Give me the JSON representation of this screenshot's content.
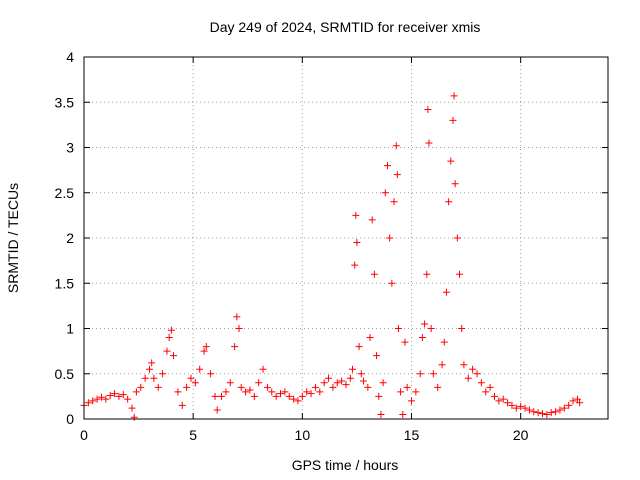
{
  "chart_data": {
    "type": "scatter",
    "title": "Day 249 of 2024, SRMTID for receiver xmis",
    "xlabel": "GPS time / hours",
    "ylabel": "SRMTID / TECUs",
    "xlim": [
      0,
      24
    ],
    "ylim": [
      0,
      4
    ],
    "xticks": [
      0,
      5,
      10,
      15,
      20
    ],
    "yticks": [
      0,
      0.5,
      1,
      1.5,
      2,
      2.5,
      3,
      3.5,
      4
    ],
    "ytick_labels": [
      "0",
      "0.5",
      "1",
      "1.5",
      "2",
      "2.5",
      "3",
      "3.5",
      "4"
    ],
    "grid": true,
    "marker": "+",
    "color": "#ff0000",
    "series": [
      {
        "name": "xmis",
        "points": [
          [
            0.0,
            0.15
          ],
          [
            0.2,
            0.18
          ],
          [
            0.4,
            0.2
          ],
          [
            0.6,
            0.22
          ],
          [
            0.8,
            0.24
          ],
          [
            1.0,
            0.22
          ],
          [
            1.2,
            0.26
          ],
          [
            1.4,
            0.28
          ],
          [
            1.6,
            0.25
          ],
          [
            1.8,
            0.27
          ],
          [
            2.0,
            0.22
          ],
          [
            2.2,
            0.12
          ],
          [
            2.3,
            0.02
          ],
          [
            2.4,
            0.3
          ],
          [
            2.6,
            0.35
          ],
          [
            2.8,
            0.45
          ],
          [
            3.0,
            0.55
          ],
          [
            3.1,
            0.62
          ],
          [
            3.2,
            0.45
          ],
          [
            3.4,
            0.35
          ],
          [
            3.6,
            0.5
          ],
          [
            3.8,
            0.75
          ],
          [
            3.9,
            0.9
          ],
          [
            4.0,
            0.98
          ],
          [
            4.1,
            0.7
          ],
          [
            4.3,
            0.3
          ],
          [
            4.5,
            0.15
          ],
          [
            4.7,
            0.35
          ],
          [
            4.9,
            0.45
          ],
          [
            5.1,
            0.4
          ],
          [
            5.3,
            0.55
          ],
          [
            5.5,
            0.75
          ],
          [
            5.6,
            0.8
          ],
          [
            5.8,
            0.5
          ],
          [
            6.0,
            0.25
          ],
          [
            6.1,
            0.1
          ],
          [
            6.3,
            0.25
          ],
          [
            6.5,
            0.3
          ],
          [
            6.7,
            0.4
          ],
          [
            6.9,
            0.8
          ],
          [
            7.0,
            1.13
          ],
          [
            7.1,
            1.0
          ],
          [
            7.2,
            0.35
          ],
          [
            7.4,
            0.3
          ],
          [
            7.6,
            0.32
          ],
          [
            7.8,
            0.25
          ],
          [
            8.0,
            0.4
          ],
          [
            8.2,
            0.55
          ],
          [
            8.4,
            0.35
          ],
          [
            8.6,
            0.3
          ],
          [
            8.8,
            0.25
          ],
          [
            9.0,
            0.28
          ],
          [
            9.2,
            0.3
          ],
          [
            9.4,
            0.25
          ],
          [
            9.6,
            0.22
          ],
          [
            9.8,
            0.2
          ],
          [
            10.0,
            0.25
          ],
          [
            10.2,
            0.3
          ],
          [
            10.4,
            0.28
          ],
          [
            10.6,
            0.35
          ],
          [
            10.8,
            0.3
          ],
          [
            11.0,
            0.4
          ],
          [
            11.2,
            0.45
          ],
          [
            11.4,
            0.35
          ],
          [
            11.6,
            0.4
          ],
          [
            11.8,
            0.42
          ],
          [
            12.0,
            0.38
          ],
          [
            12.2,
            0.45
          ],
          [
            12.3,
            0.55
          ],
          [
            12.4,
            1.7
          ],
          [
            12.45,
            2.25
          ],
          [
            12.5,
            1.95
          ],
          [
            12.6,
            0.8
          ],
          [
            12.7,
            0.5
          ],
          [
            12.8,
            0.42
          ],
          [
            13.0,
            0.35
          ],
          [
            13.1,
            0.9
          ],
          [
            13.2,
            2.2
          ],
          [
            13.3,
            1.6
          ],
          [
            13.4,
            0.7
          ],
          [
            13.5,
            0.25
          ],
          [
            13.6,
            0.05
          ],
          [
            13.7,
            0.4
          ],
          [
            13.8,
            2.5
          ],
          [
            13.9,
            2.8
          ],
          [
            14.0,
            2.0
          ],
          [
            14.1,
            1.5
          ],
          [
            14.2,
            2.4
          ],
          [
            14.3,
            3.02
          ],
          [
            14.35,
            2.7
          ],
          [
            14.4,
            1.0
          ],
          [
            14.5,
            0.3
          ],
          [
            14.6,
            0.05
          ],
          [
            14.7,
            0.85
          ],
          [
            14.8,
            0.35
          ],
          [
            15.0,
            0.2
          ],
          [
            15.2,
            0.3
          ],
          [
            15.4,
            0.5
          ],
          [
            15.5,
            0.9
          ],
          [
            15.6,
            1.05
          ],
          [
            15.7,
            1.6
          ],
          [
            15.75,
            3.42
          ],
          [
            15.8,
            3.05
          ],
          [
            15.9,
            1.0
          ],
          [
            16.0,
            0.5
          ],
          [
            16.2,
            0.35
          ],
          [
            16.4,
            0.6
          ],
          [
            16.5,
            0.85
          ],
          [
            16.6,
            1.4
          ],
          [
            16.7,
            2.4
          ],
          [
            16.8,
            2.85
          ],
          [
            16.9,
            3.3
          ],
          [
            16.95,
            3.57
          ],
          [
            17.0,
            2.6
          ],
          [
            17.1,
            2.0
          ],
          [
            17.2,
            1.6
          ],
          [
            17.3,
            1.0
          ],
          [
            17.4,
            0.6
          ],
          [
            17.6,
            0.45
          ],
          [
            17.8,
            0.55
          ],
          [
            18.0,
            0.5
          ],
          [
            18.2,
            0.4
          ],
          [
            18.4,
            0.3
          ],
          [
            18.6,
            0.35
          ],
          [
            18.8,
            0.25
          ],
          [
            19.0,
            0.2
          ],
          [
            19.2,
            0.22
          ],
          [
            19.4,
            0.18
          ],
          [
            19.6,
            0.15
          ],
          [
            19.8,
            0.12
          ],
          [
            20.0,
            0.14
          ],
          [
            20.2,
            0.12
          ],
          [
            20.4,
            0.1
          ],
          [
            20.6,
            0.08
          ],
          [
            20.8,
            0.07
          ],
          [
            21.0,
            0.06
          ],
          [
            21.2,
            0.05
          ],
          [
            21.4,
            0.07
          ],
          [
            21.6,
            0.08
          ],
          [
            21.8,
            0.1
          ],
          [
            22.0,
            0.12
          ],
          [
            22.2,
            0.15
          ],
          [
            22.4,
            0.2
          ],
          [
            22.6,
            0.22
          ],
          [
            22.7,
            0.18
          ]
        ]
      }
    ]
  }
}
